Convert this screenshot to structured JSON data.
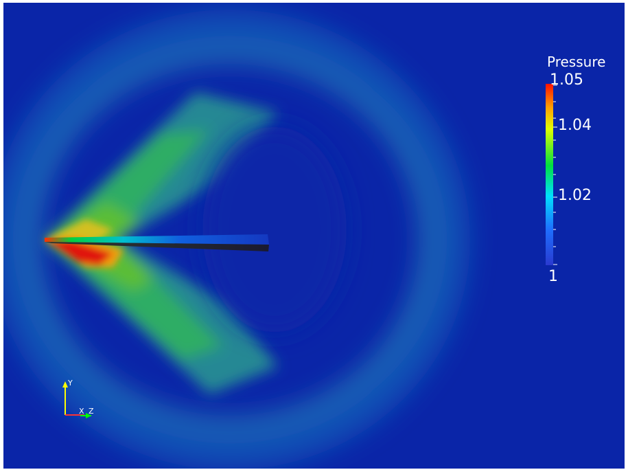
{
  "colorbar": {
    "title": "Pressure",
    "min_label": "1",
    "mid_label": "1.02",
    "upper_label": "1.04",
    "max_label": "1.05",
    "colormap": [
      "#3a4cc0",
      "#00ffff",
      "#00ff00",
      "#ffff00",
      "#ff0000"
    ]
  },
  "orientation_axes": {
    "y_label": "Y",
    "x_label": "X",
    "z_label": "Z",
    "x_color": "#ff3333",
    "y_color": "#ffff00",
    "z_color": "#00ff00"
  },
  "colors": {
    "background": "#0a25a8"
  }
}
